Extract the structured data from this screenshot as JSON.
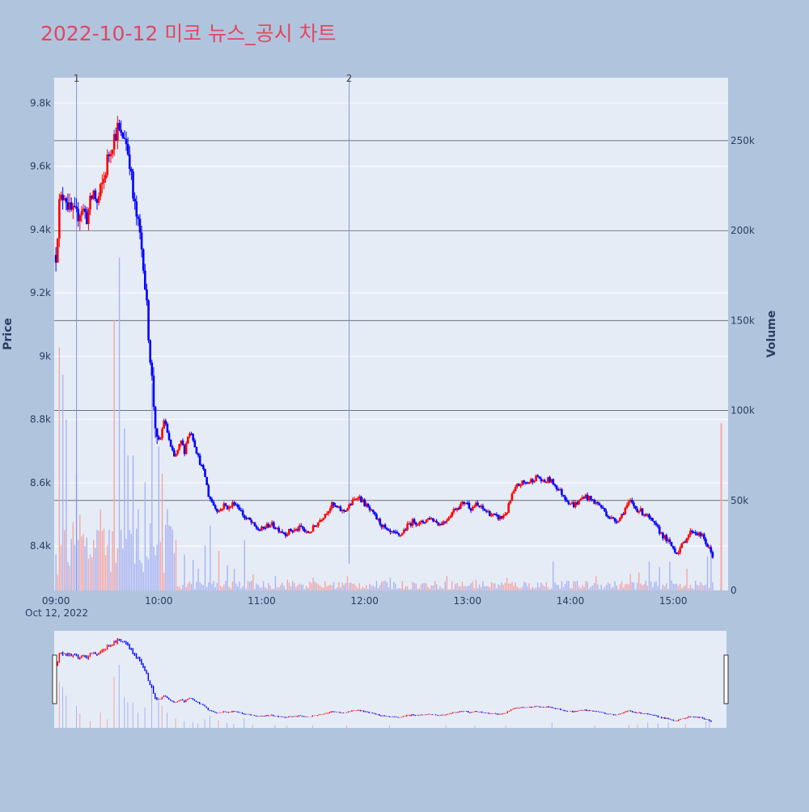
{
  "title": "2022-10-12 미코 뉴스_공시 차트",
  "colors": {
    "page_bg": "#b0c4de",
    "plot_bg": "#e5ecf6",
    "title": "#e2475e",
    "up": "#ff0000",
    "down": "#0000ff",
    "vol_up": "#f4a6a6",
    "vol_down": "#a9b3f2",
    "gridline": "#ffffff",
    "hline": "#6b7280",
    "marker_line": "#7f94e0",
    "axis_text": "#2a3f5f"
  },
  "chart_data": {
    "type": "candlestick",
    "title": "2022-10-12 미코 뉴스_공시 차트",
    "ylabel": "Price",
    "y2label": "Volume",
    "xlabel": "",
    "ylim": [
      8260,
      9880
    ],
    "y2lim": [
      0,
      285000
    ],
    "price_ticks": [
      "9.8k",
      "9.6k",
      "9.4k",
      "9.2k",
      "9k",
      "8.8k",
      "8.6k",
      "8.4k"
    ],
    "price_tick_values": [
      9800,
      9600,
      9400,
      9200,
      9000,
      8800,
      8600,
      8400
    ],
    "volume_ticks": [
      "250k",
      "200k",
      "150k",
      "100k",
      "50k",
      "0"
    ],
    "volume_tick_values": [
      250000,
      200000,
      150000,
      100000,
      50000,
      0
    ],
    "time_ticks": [
      "09:00",
      "10:00",
      "11:00",
      "12:00",
      "13:00",
      "14:00",
      "15:00"
    ],
    "time_tick_minutes": [
      0,
      60,
      120,
      180,
      240,
      300,
      360
    ],
    "date_label": "Oct 12, 2022",
    "x_range_minutes": [
      -1,
      392
    ],
    "grid": true,
    "legend": "none",
    "news_markers": [
      {
        "label": "1",
        "minute": 12
      },
      {
        "label": "2",
        "minute": 171
      }
    ],
    "volume_hlines": [
      250000,
      200000,
      150000,
      100000,
      50000
    ],
    "price_path": [
      [
        0,
        9320
      ],
      [
        2,
        9480
      ],
      [
        5,
        9520
      ],
      [
        8,
        9460
      ],
      [
        12,
        9440
      ],
      [
        15,
        9470
      ],
      [
        18,
        9440
      ],
      [
        22,
        9520
      ],
      [
        24,
        9480
      ],
      [
        28,
        9560
      ],
      [
        30,
        9620
      ],
      [
        33,
        9680
      ],
      [
        36,
        9720
      ],
      [
        38,
        9690
      ],
      [
        40,
        9700
      ],
      [
        43,
        9620
      ],
      [
        45,
        9500
      ],
      [
        47,
        9440
      ],
      [
        49,
        9380
      ],
      [
        51,
        9300
      ],
      [
        53,
        9150
      ],
      [
        55,
        9000
      ],
      [
        57,
        8850
      ],
      [
        59,
        8720
      ],
      [
        61,
        8740
      ],
      [
        63,
        8800
      ],
      [
        65,
        8760
      ],
      [
        67,
        8710
      ],
      [
        69,
        8680
      ],
      [
        71,
        8700
      ],
      [
        73,
        8730
      ],
      [
        75,
        8700
      ],
      [
        77,
        8750
      ],
      [
        79,
        8760
      ],
      [
        81,
        8720
      ],
      [
        83,
        8680
      ],
      [
        85,
        8650
      ],
      [
        87,
        8620
      ],
      [
        89,
        8560
      ],
      [
        92,
        8530
      ],
      [
        95,
        8510
      ],
      [
        98,
        8530
      ],
      [
        101,
        8520
      ],
      [
        104,
        8540
      ],
      [
        107,
        8520
      ],
      [
        110,
        8490
      ],
      [
        113,
        8480
      ],
      [
        116,
        8460
      ],
      [
        119,
        8450
      ],
      [
        122,
        8460
      ],
      [
        125,
        8470
      ],
      [
        128,
        8460
      ],
      [
        131,
        8450
      ],
      [
        134,
        8440
      ],
      [
        137,
        8450
      ],
      [
        140,
        8450
      ],
      [
        143,
        8460
      ],
      [
        146,
        8440
      ],
      [
        149,
        8450
      ],
      [
        152,
        8470
      ],
      [
        155,
        8490
      ],
      [
        158,
        8510
      ],
      [
        161,
        8530
      ],
      [
        164,
        8520
      ],
      [
        167,
        8510
      ],
      [
        170,
        8520
      ],
      [
        173,
        8540
      ],
      [
        176,
        8560
      ],
      [
        179,
        8540
      ],
      [
        182,
        8520
      ],
      [
        185,
        8500
      ],
      [
        188,
        8480
      ],
      [
        191,
        8460
      ],
      [
        194,
        8440
      ],
      [
        197,
        8440
      ],
      [
        200,
        8430
      ],
      [
        203,
        8450
      ],
      [
        206,
        8470
      ],
      [
        209,
        8480
      ],
      [
        212,
        8470
      ],
      [
        215,
        8480
      ],
      [
        218,
        8490
      ],
      [
        221,
        8480
      ],
      [
        224,
        8470
      ],
      [
        227,
        8480
      ],
      [
        230,
        8500
      ],
      [
        233,
        8520
      ],
      [
        236,
        8530
      ],
      [
        239,
        8540
      ],
      [
        242,
        8520
      ],
      [
        245,
        8530
      ],
      [
        248,
        8520
      ],
      [
        251,
        8510
      ],
      [
        254,
        8500
      ],
      [
        257,
        8490
      ],
      [
        260,
        8490
      ],
      [
        263,
        8510
      ],
      [
        266,
        8560
      ],
      [
        269,
        8590
      ],
      [
        272,
        8600
      ],
      [
        275,
        8600
      ],
      [
        278,
        8610
      ],
      [
        281,
        8620
      ],
      [
        284,
        8600
      ],
      [
        287,
        8610
      ],
      [
        290,
        8600
      ],
      [
        293,
        8580
      ],
      [
        296,
        8560
      ],
      [
        299,
        8540
      ],
      [
        302,
        8530
      ],
      [
        305,
        8540
      ],
      [
        308,
        8560
      ],
      [
        311,
        8550
      ],
      [
        314,
        8540
      ],
      [
        317,
        8530
      ],
      [
        320,
        8510
      ],
      [
        323,
        8490
      ],
      [
        326,
        8480
      ],
      [
        329,
        8490
      ],
      [
        332,
        8520
      ],
      [
        335,
        8540
      ],
      [
        338,
        8520
      ],
      [
        341,
        8510
      ],
      [
        344,
        8500
      ],
      [
        347,
        8480
      ],
      [
        350,
        8460
      ],
      [
        353,
        8440
      ],
      [
        356,
        8420
      ],
      [
        359,
        8400
      ],
      [
        362,
        8380
      ],
      [
        365,
        8400
      ],
      [
        368,
        8430
      ],
      [
        371,
        8450
      ],
      [
        374,
        8440
      ],
      [
        377,
        8430
      ],
      [
        380,
        8400
      ],
      [
        383,
        8370
      ]
    ],
    "volume_spikes": [
      [
        2,
        135000
      ],
      [
        4,
        120000
      ],
      [
        6,
        95000
      ],
      [
        12,
        65000
      ],
      [
        14,
        42000
      ],
      [
        20,
        20000
      ],
      [
        26,
        45000
      ],
      [
        30,
        25000
      ],
      [
        34,
        150000
      ],
      [
        37,
        185000
      ],
      [
        40,
        90000
      ],
      [
        42,
        75000
      ],
      [
        45,
        75000
      ],
      [
        48,
        45000
      ],
      [
        52,
        60000
      ],
      [
        56,
        115000
      ],
      [
        60,
        80000
      ],
      [
        62,
        65000
      ],
      [
        65,
        45000
      ],
      [
        70,
        28000
      ],
      [
        75,
        20000
      ],
      [
        80,
        17000
      ],
      [
        83,
        12000
      ],
      [
        87,
        25000
      ],
      [
        90,
        36000
      ],
      [
        95,
        22000
      ],
      [
        100,
        14000
      ],
      [
        104,
        12000
      ],
      [
        110,
        28000
      ],
      [
        115,
        9000
      ],
      [
        128,
        8000
      ],
      [
        135,
        6000
      ],
      [
        150,
        7000
      ],
      [
        170,
        8000
      ],
      [
        195,
        7000
      ],
      [
        228,
        8000
      ],
      [
        245,
        6000
      ],
      [
        263,
        7000
      ],
      [
        290,
        16000
      ],
      [
        315,
        8000
      ],
      [
        335,
        9000
      ],
      [
        340,
        10000
      ],
      [
        346,
        16000
      ],
      [
        352,
        13000
      ],
      [
        358,
        16000
      ],
      [
        368,
        12000
      ],
      [
        380,
        19000
      ],
      [
        382,
        22000
      ],
      [
        388,
        93000
      ]
    ]
  },
  "navigator": {
    "left_handle": "range-slider-left-handle",
    "right_handle": "range-slider-right-handle"
  }
}
